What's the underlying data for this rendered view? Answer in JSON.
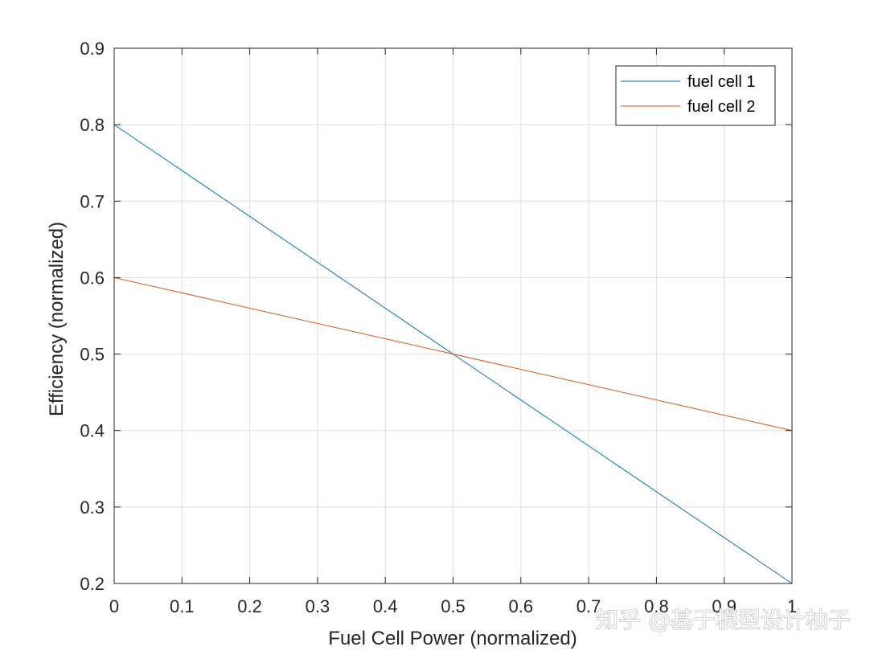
{
  "chart_data": {
    "type": "line",
    "title": "",
    "xlabel": "Fuel Cell Power (normalized)",
    "ylabel": "Efficiency (normalized)",
    "xlim": [
      0,
      1
    ],
    "ylim": [
      0.2,
      0.9
    ],
    "xticks": [
      0,
      0.1,
      0.2,
      0.3,
      0.4,
      0.5,
      0.6,
      0.7,
      0.8,
      0.9,
      1
    ],
    "xtick_labels": [
      "0",
      "0.1",
      "0.2",
      "0.3",
      "0.4",
      "0.5",
      "0.6",
      "0.7",
      "0.8",
      "0.9",
      "1"
    ],
    "yticks": [
      0.2,
      0.3,
      0.4,
      0.5,
      0.6,
      0.7,
      0.8,
      0.9
    ],
    "ytick_labels": [
      "0.2",
      "0.3",
      "0.4",
      "0.5",
      "0.6",
      "0.7",
      "0.8",
      "0.9"
    ],
    "grid": true,
    "legend_position": "top-right",
    "series": [
      {
        "name": "fuel cell 1",
        "color": "#0072BD",
        "x": [
          0,
          1
        ],
        "y": [
          0.8,
          0.2
        ]
      },
      {
        "name": "fuel cell 2",
        "color": "#D95319",
        "x": [
          0,
          1
        ],
        "y": [
          0.6,
          0.4
        ]
      }
    ]
  },
  "watermark": "知乎 @基于模型设计柚子"
}
